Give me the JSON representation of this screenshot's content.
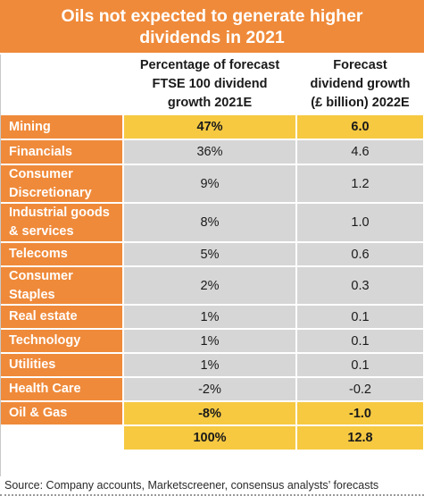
{
  "title_line1": "Oils not expected to generate higher",
  "title_line2": "dividends in 2021",
  "chart_data": {
    "type": "table",
    "title": "Oils not expected to generate higher dividends in 2021",
    "columns": [
      "",
      "Percentage of forecast FTSE 100 dividend growth 2021E",
      "Forecast dividend growth (£ billion) 2022E"
    ],
    "column_lines": [
      [
        "Percentage of forecast",
        "FTSE 100 dividend",
        "growth 2021E"
      ],
      [
        "Forecast",
        "dividend growth",
        "(£ billion) 2022E"
      ]
    ],
    "rows": [
      {
        "sector": "Mining",
        "lines": [
          "Mining"
        ],
        "pct": "47%",
        "growth": "6.0",
        "highlight": true
      },
      {
        "sector": "Financials",
        "lines": [
          "Financials"
        ],
        "pct": "36%",
        "growth": "4.6",
        "highlight": false
      },
      {
        "sector": "Consumer Discretionary",
        "lines": [
          "Consumer",
          "Discretionary"
        ],
        "pct": "9%",
        "growth": "1.2",
        "highlight": false
      },
      {
        "sector": "Industrial goods & services",
        "lines": [
          "Industrial goods",
          "& services"
        ],
        "pct": "8%",
        "growth": "1.0",
        "highlight": false
      },
      {
        "sector": "Telecoms",
        "lines": [
          "Telecoms"
        ],
        "pct": "5%",
        "growth": "0.6",
        "highlight": false
      },
      {
        "sector": "Consumer Staples",
        "lines": [
          "Consumer",
          "Staples"
        ],
        "pct": "2%",
        "growth": "0.3",
        "highlight": false
      },
      {
        "sector": "Real estate",
        "lines": [
          "Real estate"
        ],
        "pct": "1%",
        "growth": "0.1",
        "highlight": false
      },
      {
        "sector": "Technology",
        "lines": [
          "Technology"
        ],
        "pct": "1%",
        "growth": "0.1",
        "highlight": false
      },
      {
        "sector": "Utilities",
        "lines": [
          "Utilities"
        ],
        "pct": "1%",
        "growth": "0.1",
        "highlight": false
      },
      {
        "sector": "Health Care",
        "lines": [
          "Health Care"
        ],
        "pct": "-2%",
        "growth": "-0.2",
        "highlight": false
      },
      {
        "sector": "Oil & Gas",
        "lines": [
          "Oil & Gas"
        ],
        "pct": "-8%",
        "growth": "-1.0",
        "highlight": true
      }
    ],
    "total": {
      "pct": "100%",
      "growth": "12.8"
    }
  },
  "colors": {
    "orange": "#ef8a3a",
    "highlight_yellow": "#f6c941",
    "grey": "#d6d6d6"
  },
  "source": "Source: Company accounts, Marketscreener, consensus analysts’ forecasts"
}
